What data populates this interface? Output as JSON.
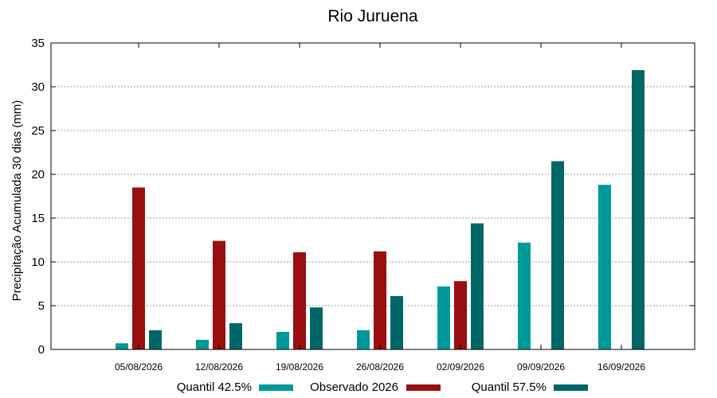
{
  "chart_data": {
    "type": "bar",
    "title": "Rio Juruena",
    "xlabel": "",
    "ylabel": "Precipitação Acumulada 30 dias (mm)",
    "ylim": [
      0,
      35
    ],
    "yticks": [
      0,
      5,
      10,
      15,
      20,
      25,
      30,
      35
    ],
    "categories": [
      "05/08/2026",
      "12/08/2026",
      "19/08/2026",
      "26/08/2026",
      "02/09/2026",
      "09/09/2026",
      "16/09/2026"
    ],
    "grid": true,
    "legend_position": "bottom",
    "series": [
      {
        "name": "Quantil 42.5%",
        "color": "#009999",
        "values": [
          0.7,
          1.1,
          2.0,
          2.2,
          7.2,
          12.2,
          18.8
        ]
      },
      {
        "name": "Observado 2026",
        "color": "#990f0f",
        "values": [
          18.5,
          12.4,
          11.1,
          11.2,
          7.8,
          null,
          null
        ]
      },
      {
        "name": "Quantil 57.5%",
        "color": "#006666",
        "values": [
          2.2,
          3.0,
          4.8,
          6.1,
          14.4,
          21.5,
          31.9
        ]
      }
    ]
  }
}
